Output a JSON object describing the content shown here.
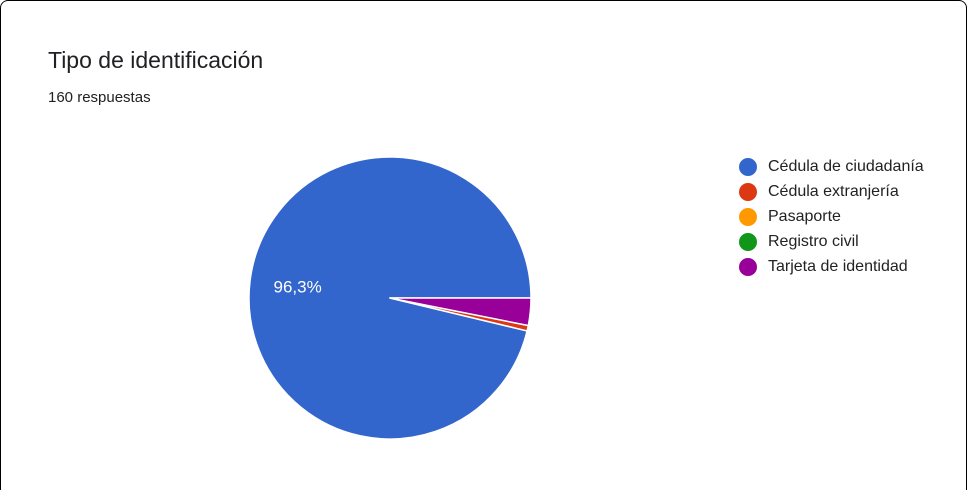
{
  "card": {
    "title": "Tipo de identificación",
    "subtitle": "160 respuestas"
  },
  "chart_data": {
    "type": "pie",
    "categories": [
      "Cédula de ciudadanía",
      "Cédula extranjería",
      "Pasaporte",
      "Registro civil",
      "Tarjeta de identidad"
    ],
    "values": [
      154,
      1,
      0,
      0,
      5
    ],
    "colors": [
      "#3366cc",
      "#dc3912",
      "#ff9900",
      "#109618",
      "#990099"
    ],
    "slice_labels": [
      "96,3%",
      "",
      "",
      "",
      ""
    ],
    "legend": "right",
    "start_direction": "east",
    "direction": "counter-clockwise"
  }
}
